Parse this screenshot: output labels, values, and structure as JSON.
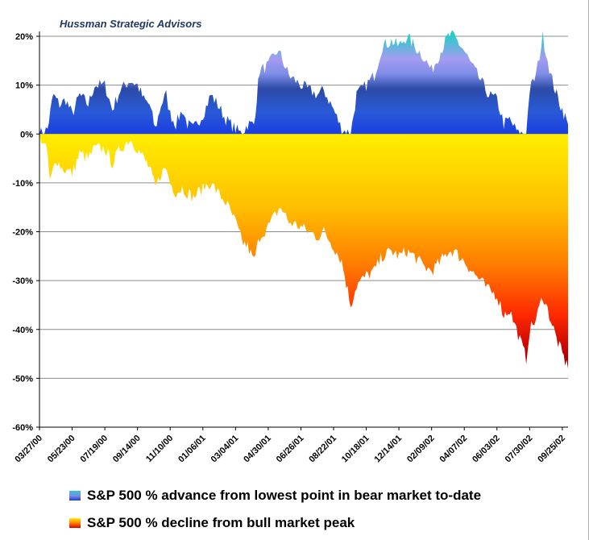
{
  "watermark": "Hussman Strategic Advisors",
  "chart_data": {
    "type": "area",
    "title": "",
    "xlabel": "",
    "ylabel": "",
    "ylim": [
      -60,
      20
    ],
    "y_ticks": [
      "20%",
      "10%",
      "0%",
      "-10%",
      "-20%",
      "-30%",
      "-40%",
      "-50%",
      "-60%"
    ],
    "x_ticks": [
      "03/27/00",
      "05/23/00",
      "07/19/00",
      "09/14/00",
      "11/10/00",
      "01/06/01",
      "03/04/01",
      "04/30/01",
      "06/26/01",
      "08/22/01",
      "10/18/01",
      "12/14/01",
      "02/09/02",
      "04/07/02",
      "06/03/02",
      "07/30/02",
      "09/25/02"
    ],
    "grid": "horizontal",
    "legend_position": "bottom",
    "series": [
      {
        "name": "S&P 500 % advance from lowest point in bear market to-date",
        "color_low": "#1c3fd8",
        "color_high": "#29c9c9",
        "points": [
          [
            "03/27/00",
            0
          ],
          [
            "04/10/00",
            1
          ],
          [
            "04/20/00",
            8
          ],
          [
            "05/01/00",
            6
          ],
          [
            "05/12/00",
            7
          ],
          [
            "05/23/00",
            4
          ],
          [
            "06/05/00",
            8
          ],
          [
            "06/20/00",
            6
          ],
          [
            "07/01/00",
            10
          ],
          [
            "07/19/00",
            10
          ],
          [
            "08/01/00",
            5
          ],
          [
            "08/15/00",
            9
          ],
          [
            "09/01/00",
            11
          ],
          [
            "09/14/00",
            10
          ],
          [
            "09/25/00",
            7
          ],
          [
            "10/05/00",
            6
          ],
          [
            "10/15/00",
            1
          ],
          [
            "10/25/00",
            6
          ],
          [
            "11/03/00",
            8
          ],
          [
            "11/10/00",
            4
          ],
          [
            "11/20/00",
            2
          ],
          [
            "12/01/00",
            5
          ],
          [
            "12/10/00",
            2
          ],
          [
            "12/20/00",
            1
          ],
          [
            "01/06/01",
            4
          ],
          [
            "01/20/01",
            8
          ],
          [
            "02/01/01",
            6
          ],
          [
            "02/15/01",
            3
          ],
          [
            "03/04/01",
            1
          ],
          [
            "03/15/01",
            0
          ],
          [
            "03/25/01",
            2
          ],
          [
            "04/05/01",
            2
          ],
          [
            "04/15/01",
            13
          ],
          [
            "04/30/01",
            14
          ],
          [
            "05/15/01",
            17
          ],
          [
            "05/22/01",
            16
          ],
          [
            "06/05/01",
            12
          ],
          [
            "06/26/01",
            10
          ],
          [
            "07/10/01",
            9
          ],
          [
            "07/25/01",
            8
          ],
          [
            "08/05/01",
            9
          ],
          [
            "08/22/01",
            5
          ],
          [
            "09/05/01",
            1
          ],
          [
            "09/21/01",
            0
          ],
          [
            "10/01/01",
            8
          ],
          [
            "10/18/01",
            10
          ],
          [
            "11/01/01",
            12
          ],
          [
            "11/15/01",
            18
          ],
          [
            "12/01/01",
            19
          ],
          [
            "12/14/01",
            18
          ],
          [
            "12/28/01",
            20
          ],
          [
            "01/10/02",
            18
          ],
          [
            "01/25/02",
            16
          ],
          [
            "02/09/02",
            13
          ],
          [
            "02/25/02",
            17
          ],
          [
            "03/10/02",
            20
          ],
          [
            "03/20/02",
            20
          ],
          [
            "04/07/02",
            17
          ],
          [
            "04/20/02",
            14
          ],
          [
            "05/05/02",
            11
          ],
          [
            "05/20/02",
            8
          ],
          [
            "06/03/02",
            7
          ],
          [
            "06/15/02",
            2
          ],
          [
            "06/25/02",
            3
          ],
          [
            "07/10/02",
            0
          ],
          [
            "07/24/02",
            0
          ],
          [
            "07/30/02",
            9
          ],
          [
            "08/10/02",
            12
          ],
          [
            "08/22/02",
            20
          ],
          [
            "09/05/02",
            12
          ],
          [
            "09/15/02",
            8
          ],
          [
            "09/25/02",
            5
          ],
          [
            "10/05/02",
            2
          ]
        ]
      },
      {
        "name": "S&P 500 % decline from bull market peak",
        "color_low": "#ffea00",
        "color_high": "#8b0000",
        "points": [
          [
            "03/27/00",
            0
          ],
          [
            "04/10/00",
            -4
          ],
          [
            "04/14/00",
            -10
          ],
          [
            "04/25/00",
            -5
          ],
          [
            "05/05/00",
            -7
          ],
          [
            "05/23/00",
            -8
          ],
          [
            "06/05/00",
            -4
          ],
          [
            "06/20/00",
            -5
          ],
          [
            "07/01/00",
            -3
          ],
          [
            "07/19/00",
            -3
          ],
          [
            "08/01/00",
            -6
          ],
          [
            "08/15/00",
            -3
          ],
          [
            "09/01/00",
            -1
          ],
          [
            "09/14/00",
            -3
          ],
          [
            "09/25/00",
            -5
          ],
          [
            "10/05/00",
            -7
          ],
          [
            "10/15/00",
            -11
          ],
          [
            "10/25/00",
            -8
          ],
          [
            "11/03/00",
            -7
          ],
          [
            "11/10/00",
            -10
          ],
          [
            "11/20/00",
            -12
          ],
          [
            "12/01/00",
            -11
          ],
          [
            "12/10/00",
            -12
          ],
          [
            "12/20/00",
            -13
          ],
          [
            "01/06/01",
            -11
          ],
          [
            "01/20/01",
            -10
          ],
          [
            "02/01/01",
            -12
          ],
          [
            "02/15/01",
            -14
          ],
          [
            "03/04/01",
            -18
          ],
          [
            "03/15/01",
            -22
          ],
          [
            "03/25/01",
            -23
          ],
          [
            "04/05/01",
            -26
          ],
          [
            "04/15/01",
            -21
          ],
          [
            "04/30/01",
            -19
          ],
          [
            "05/15/01",
            -16
          ],
          [
            "05/22/01",
            -15
          ],
          [
            "06/05/01",
            -18
          ],
          [
            "06/26/01",
            -19
          ],
          [
            "07/10/01",
            -20
          ],
          [
            "07/25/01",
            -21
          ],
          [
            "08/05/01",
            -20
          ],
          [
            "08/22/01",
            -23
          ],
          [
            "09/05/01",
            -26
          ],
          [
            "09/21/01",
            -35
          ],
          [
            "10/01/01",
            -31
          ],
          [
            "10/18/01",
            -29
          ],
          [
            "11/01/01",
            -28
          ],
          [
            "11/15/01",
            -25
          ],
          [
            "12/01/01",
            -24
          ],
          [
            "12/14/01",
            -25
          ],
          [
            "12/28/01",
            -24
          ],
          [
            "01/10/02",
            -25
          ],
          [
            "01/25/02",
            -27
          ],
          [
            "02/09/02",
            -28
          ],
          [
            "02/25/02",
            -26
          ],
          [
            "03/10/02",
            -24
          ],
          [
            "03/20/02",
            -24
          ],
          [
            "04/07/02",
            -26
          ],
          [
            "04/20/02",
            -28
          ],
          [
            "05/05/02",
            -30
          ],
          [
            "05/20/02",
            -32
          ],
          [
            "06/03/02",
            -33
          ],
          [
            "06/15/02",
            -37
          ],
          [
            "06/25/02",
            -36
          ],
          [
            "07/10/02",
            -41
          ],
          [
            "07/24/02",
            -46
          ],
          [
            "07/30/02",
            -40
          ],
          [
            "08/10/02",
            -38
          ],
          [
            "08/22/02",
            -33
          ],
          [
            "09/05/02",
            -38
          ],
          [
            "09/15/02",
            -42
          ],
          [
            "09/25/02",
            -45
          ],
          [
            "10/05/02",
            -48
          ]
        ]
      }
    ]
  }
}
